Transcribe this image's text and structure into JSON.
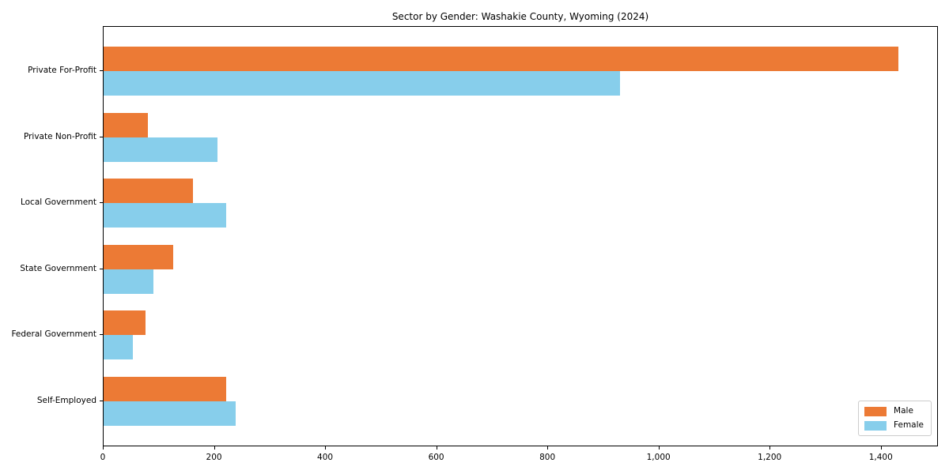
{
  "figure": {
    "background": "#ffffff",
    "spine_color": "#000000"
  },
  "chart_data": {
    "type": "bar",
    "orientation": "horizontal",
    "title": "Sector by Gender: Washakie County, Wyoming (2024)",
    "categories": [
      "Private For-Profit",
      "Private Non-Profit",
      "Local Government",
      "State Government",
      "Federal Government",
      "Self-Employed"
    ],
    "series": [
      {
        "name": "Male",
        "color": "#EC7A35",
        "values": [
          1430,
          79,
          161,
          125,
          76,
          220
        ]
      },
      {
        "name": "Female",
        "color": "#87CEEB",
        "values": [
          930,
          205,
          221,
          90,
          52,
          238
        ]
      }
    ],
    "xlabel": "",
    "ylabel": "",
    "xlim": [
      0,
      1500
    ],
    "xticks": [
      0,
      200,
      400,
      600,
      800,
      1000,
      1200,
      1400
    ],
    "xtick_labels": [
      "0",
      "200",
      "400",
      "600",
      "800",
      "1,000",
      "1,200",
      "1,400"
    ],
    "grid": false,
    "legend": {
      "position": "lower right",
      "entries": [
        "Male",
        "Female"
      ]
    }
  }
}
